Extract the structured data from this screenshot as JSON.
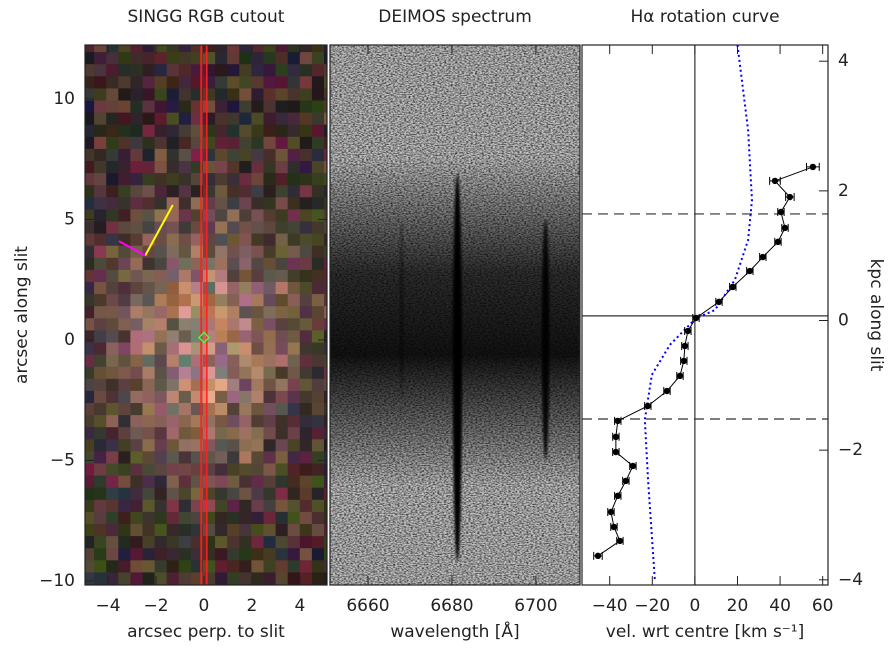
{
  "chart_data": [
    {
      "type": "image",
      "title": "SINGG RGB cutout",
      "xlabel": "arcsec perp. to slit",
      "ylabel": "arcsec along slit",
      "xlim": [
        -4.96,
        5.13
      ],
      "ylim": [
        -10.17,
        12.24
      ],
      "xticks": [
        {
          "value": -4,
          "label": "−4"
        },
        {
          "value": -2,
          "label": "−2"
        },
        0,
        2,
        4
      ],
      "yticks": [
        {
          "value": -10,
          "label": "−10"
        },
        {
          "value": -5,
          "label": "−5"
        },
        0,
        5,
        10
      ],
      "slit": [
        -0.12,
        0.12
      ],
      "slit_color": "#ff2020",
      "marker": {
        "x": 0,
        "y": 0.1,
        "color": "#40ff40"
      },
      "segments": [
        {
          "color": "#ffff00",
          "x": [
            -2.45,
            -1.3
          ],
          "y": [
            3.5,
            5.6
          ]
        },
        {
          "color": "#ff00ff",
          "x": [
            -3.55,
            -2.45
          ],
          "y": [
            4.1,
            3.5
          ]
        }
      ]
    },
    {
      "type": "spectrum",
      "title": "DEIMOS spectrum",
      "xlabel": "wavelength [Å]",
      "xlim": [
        6650.95,
        6710.5
      ],
      "ylim": [
        -10.17,
        12.24
      ],
      "xticks": [
        6660,
        6680,
        6700
      ],
      "continuum_y": [
        -3.5,
        5
      ],
      "emission_lines": [
        {
          "x": 6668,
          "y": [
            -2.5,
            5
          ],
          "width": 1.0,
          "opacity": 0.35
        },
        {
          "x": 6681.3,
          "y": [
            -9.2,
            6.9
          ],
          "width": 2.2,
          "opacity": 1
        },
        {
          "x": 6702.3,
          "y": [
            -5,
            5
          ],
          "width": 1.8,
          "opacity": 0.9
        }
      ]
    },
    {
      "type": "rotation",
      "title": "Hα rotation curve",
      "xlabel": "vel. wrt centre [km s⁻¹]",
      "y2label": "kpc along slit",
      "xlim": [
        -53,
        62.5
      ],
      "ylim": [
        -10.17,
        12.24
      ],
      "y2lim": [
        -4.08,
        4.25
      ],
      "xticks": [
        {
          "value": -40,
          "label": "−40"
        },
        {
          "value": -20,
          "label": "−20"
        },
        0,
        20,
        40,
        60
      ],
      "y2ticks": [
        {
          "value": -4,
          "label": "−4"
        },
        {
          "value": -2,
          "label": "−2"
        },
        0,
        2,
        4
      ],
      "vlines": [
        0
      ],
      "hlines": [
        {
          "value": 1.0,
          "style": "solid"
        },
        {
          "value": 5.23,
          "style": "dashed"
        },
        {
          "value": -3.28,
          "style": "dashed"
        }
      ],
      "series": [
        {
          "color": "#0000ff",
          "style": "dotted",
          "x": [
            20,
            25,
            26.8,
            25,
            18.8,
            9.4,
            0.5,
            -11.7,
            -20.2,
            -23.5,
            -22,
            -18.8
          ],
          "y": [
            12.24,
            8.7,
            5.8,
            4.15,
            2.5,
            1.24,
            0.9,
            -0.2,
            -1.45,
            -3.3,
            -5.8,
            -9.96
          ]
        },
        {
          "color": "#000000",
          "style": "solid",
          "x": [
            55.4,
            37.6,
            44.6,
            40.4,
            42.3,
            39,
            31.9,
            25.8,
            17.8,
            11.3,
            0.5,
            -3.3,
            -4.7,
            -5.2,
            -7,
            -13.1,
            -22.1,
            -36.2,
            -37.1,
            -37.1,
            -29.1,
            -32.4,
            -36.2,
            -39.4,
            -38,
            -35.2,
            -45.5
          ],
          "y": [
            7.18,
            6.6,
            5.93,
            5.31,
            4.65,
            4.07,
            3.44,
            2.86,
            2.2,
            1.58,
            0.91,
            0.37,
            -0.25,
            -0.87,
            -1.49,
            -2.12,
            -2.74,
            -3.36,
            -4.02,
            -4.65,
            -5.23,
            -5.85,
            -6.47,
            -7.14,
            -7.76,
            -8.34,
            -8.96
          ],
          "xerr": [
            3,
            2.5,
            2,
            1.5,
            1.5,
            1.5,
            1.5,
            1.5,
            1.5,
            1.5,
            1.5,
            1.5,
            1.5,
            1.5,
            1.5,
            1.5,
            1.5,
            1.5,
            1.5,
            1.5,
            1.5,
            1.5,
            1.5,
            1.5,
            1.5,
            1.5,
            2
          ]
        }
      ]
    }
  ]
}
